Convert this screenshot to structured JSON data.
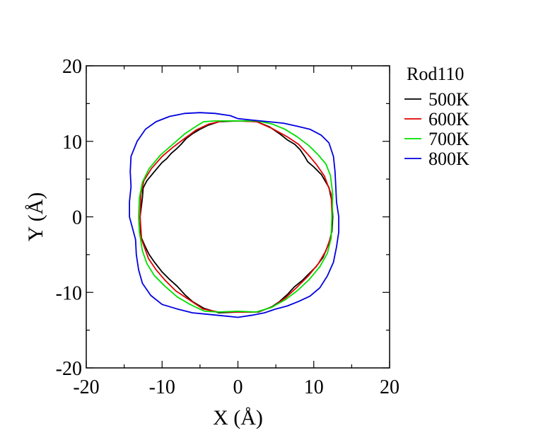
{
  "chart_data": {
    "type": "line",
    "title": "",
    "xlabel": "X (Å)",
    "ylabel": "Y (Å)",
    "xlim": [
      -20,
      20
    ],
    "ylim": [
      -20,
      20
    ],
    "xticks": [
      -20,
      -10,
      0,
      10,
      20
    ],
    "yticks": [
      -20,
      -10,
      0,
      10,
      20
    ],
    "tick_labels_x": [
      "-20",
      "-10",
      "0",
      "10",
      "20"
    ],
    "tick_labels_y": [
      "-20",
      "-10",
      "0",
      "10",
      "20"
    ],
    "grid": false,
    "legend_title": "Rod110",
    "legend_position": "outside-right-top",
    "series": [
      {
        "name": "500K",
        "color": "#000000",
        "points": [
          [
            0,
            12.7
          ],
          [
            2.5,
            12.6
          ],
          [
            4.2,
            11.9
          ],
          [
            5.5,
            11.0
          ],
          [
            6.5,
            10.2
          ],
          [
            7.5,
            9.6
          ],
          [
            8.2,
            8.9
          ],
          [
            8.8,
            8.0
          ],
          [
            9.2,
            7.3
          ],
          [
            10.0,
            6.6
          ],
          [
            11.0,
            5.6
          ],
          [
            12.0,
            3.9
          ],
          [
            12.4,
            2.0
          ],
          [
            12.5,
            0
          ],
          [
            12.4,
            -1.9
          ],
          [
            12.0,
            -3.5
          ],
          [
            11.2,
            -5.4
          ],
          [
            10.3,
            -6.6
          ],
          [
            9.3,
            -7.6
          ],
          [
            8.5,
            -8.4
          ],
          [
            7.4,
            -9.3
          ],
          [
            6.6,
            -10.2
          ],
          [
            5.5,
            -11.2
          ],
          [
            4.5,
            -11.9
          ],
          [
            2.7,
            -12.6
          ],
          [
            0,
            -12.6
          ],
          [
            -2.5,
            -12.7
          ],
          [
            -4.5,
            -12.1
          ],
          [
            -6.0,
            -11.2
          ],
          [
            -7.0,
            -10.3
          ],
          [
            -8.0,
            -9.2
          ],
          [
            -9.0,
            -8.3
          ],
          [
            -10.0,
            -7.3
          ],
          [
            -11.0,
            -6.0
          ],
          [
            -11.7,
            -5.0
          ],
          [
            -12.2,
            -4.0
          ],
          [
            -12.8,
            -2.6
          ],
          [
            -12.9,
            0
          ],
          [
            -12.6,
            2.5
          ],
          [
            -12.5,
            3.8
          ],
          [
            -12.0,
            4.8
          ],
          [
            -11.0,
            6.0
          ],
          [
            -10.0,
            7.2
          ],
          [
            -9.4,
            7.7
          ],
          [
            -8.8,
            8.4
          ],
          [
            -8.0,
            9.1
          ],
          [
            -7.5,
            9.6
          ],
          [
            -6.8,
            10.4
          ],
          [
            -6.0,
            11.0
          ],
          [
            -5.0,
            11.6
          ],
          [
            -4.0,
            12.1
          ],
          [
            -2.5,
            12.6
          ],
          [
            0,
            12.7
          ]
        ]
      },
      {
        "name": "600K",
        "color": "#e00000",
        "points": [
          [
            0,
            12.7
          ],
          [
            2.5,
            12.6
          ],
          [
            4.5,
            11.7
          ],
          [
            6.5,
            10.6
          ],
          [
            8.0,
            9.6
          ],
          [
            9.2,
            8.3
          ],
          [
            10.3,
            7.0
          ],
          [
            11.4,
            5.4
          ],
          [
            12.3,
            3.0
          ],
          [
            12.4,
            0
          ],
          [
            12.3,
            -2.5
          ],
          [
            11.6,
            -4.5
          ],
          [
            10.6,
            -6.2
          ],
          [
            9.3,
            -7.8
          ],
          [
            7.8,
            -9.3
          ],
          [
            6.3,
            -10.7
          ],
          [
            4.6,
            -11.9
          ],
          [
            2.6,
            -12.6
          ],
          [
            0,
            -12.6
          ],
          [
            -2.6,
            -12.6
          ],
          [
            -4.6,
            -12.2
          ],
          [
            -6.4,
            -11.0
          ],
          [
            -8.2,
            -9.8
          ],
          [
            -9.6,
            -8.4
          ],
          [
            -10.8,
            -7.0
          ],
          [
            -11.8,
            -5.5
          ],
          [
            -12.7,
            -3.0
          ],
          [
            -12.9,
            0
          ],
          [
            -12.8,
            3.0
          ],
          [
            -12.4,
            4.8
          ],
          [
            -11.4,
            6.4
          ],
          [
            -10.0,
            8.0
          ],
          [
            -8.6,
            9.2
          ],
          [
            -7.0,
            10.4
          ],
          [
            -5.5,
            11.5
          ],
          [
            -3.8,
            12.3
          ],
          [
            -2.0,
            12.7
          ],
          [
            0,
            12.7
          ]
        ]
      },
      {
        "name": "700K",
        "color": "#00e000",
        "points": [
          [
            0,
            12.7
          ],
          [
            2.5,
            12.7
          ],
          [
            4.5,
            12.3
          ],
          [
            6.2,
            11.6
          ],
          [
            7.8,
            10.6
          ],
          [
            9.4,
            9.4
          ],
          [
            10.6,
            8.2
          ],
          [
            11.6,
            7.0
          ],
          [
            12.2,
            5.5
          ],
          [
            12.5,
            3.0
          ],
          [
            12.4,
            0
          ],
          [
            12.3,
            -2.8
          ],
          [
            11.8,
            -4.8
          ],
          [
            10.8,
            -6.6
          ],
          [
            9.4,
            -8.3
          ],
          [
            7.8,
            -9.8
          ],
          [
            6.2,
            -11.0
          ],
          [
            4.4,
            -12.0
          ],
          [
            2.4,
            -12.6
          ],
          [
            0,
            -12.5
          ],
          [
            -2.6,
            -12.6
          ],
          [
            -4.4,
            -12.5
          ],
          [
            -6.3,
            -11.6
          ],
          [
            -8.0,
            -10.6
          ],
          [
            -9.6,
            -9.2
          ],
          [
            -11.0,
            -7.8
          ],
          [
            -12.0,
            -6.2
          ],
          [
            -12.6,
            -4.5
          ],
          [
            -13.0,
            -2.0
          ],
          [
            -13.1,
            0
          ],
          [
            -13.0,
            2.5
          ],
          [
            -12.6,
            4.6
          ],
          [
            -11.7,
            6.4
          ],
          [
            -10.2,
            8.2
          ],
          [
            -8.6,
            9.6
          ],
          [
            -7.0,
            11.0
          ],
          [
            -5.5,
            12.0
          ],
          [
            -4.5,
            12.6
          ],
          [
            -3.0,
            12.7
          ],
          [
            0,
            12.7
          ]
        ]
      },
      {
        "name": "800K",
        "color": "#0000e0",
        "points": [
          [
            0,
            13.0
          ],
          [
            2.0,
            12.8
          ],
          [
            4.0,
            12.6
          ],
          [
            6.0,
            12.4
          ],
          [
            7.8,
            12.0
          ],
          [
            9.5,
            11.6
          ],
          [
            11.0,
            10.8
          ],
          [
            12.0,
            9.8
          ],
          [
            12.6,
            8.0
          ],
          [
            12.8,
            6.0
          ],
          [
            12.9,
            4.0
          ],
          [
            13.0,
            2.0
          ],
          [
            13.3,
            0
          ],
          [
            13.3,
            -2.0
          ],
          [
            13.0,
            -4.0
          ],
          [
            12.6,
            -6.0
          ],
          [
            11.8,
            -7.8
          ],
          [
            10.8,
            -9.4
          ],
          [
            9.5,
            -10.5
          ],
          [
            8.0,
            -11.2
          ],
          [
            6.5,
            -11.8
          ],
          [
            5.0,
            -12.2
          ],
          [
            3.5,
            -12.7
          ],
          [
            2.0,
            -13.0
          ],
          [
            0,
            -13.3
          ],
          [
            -2.0,
            -13.1
          ],
          [
            -4.0,
            -12.9
          ],
          [
            -6.0,
            -12.7
          ],
          [
            -8.0,
            -12.2
          ],
          [
            -10.0,
            -11.6
          ],
          [
            -11.5,
            -10.4
          ],
          [
            -12.6,
            -8.8
          ],
          [
            -13.1,
            -7.0
          ],
          [
            -13.4,
            -5.0
          ],
          [
            -13.5,
            -3.0
          ],
          [
            -14.3,
            0
          ],
          [
            -14.3,
            2.0
          ],
          [
            -14.1,
            4.0
          ],
          [
            -14.2,
            6.0
          ],
          [
            -14.1,
            8.0
          ],
          [
            -13.3,
            10.0
          ],
          [
            -12.2,
            11.6
          ],
          [
            -10.8,
            12.6
          ],
          [
            -9.0,
            13.3
          ],
          [
            -7.0,
            13.7
          ],
          [
            -5.0,
            13.8
          ],
          [
            -3.0,
            13.7
          ],
          [
            -1.0,
            13.4
          ],
          [
            0,
            13.0
          ]
        ]
      }
    ]
  }
}
